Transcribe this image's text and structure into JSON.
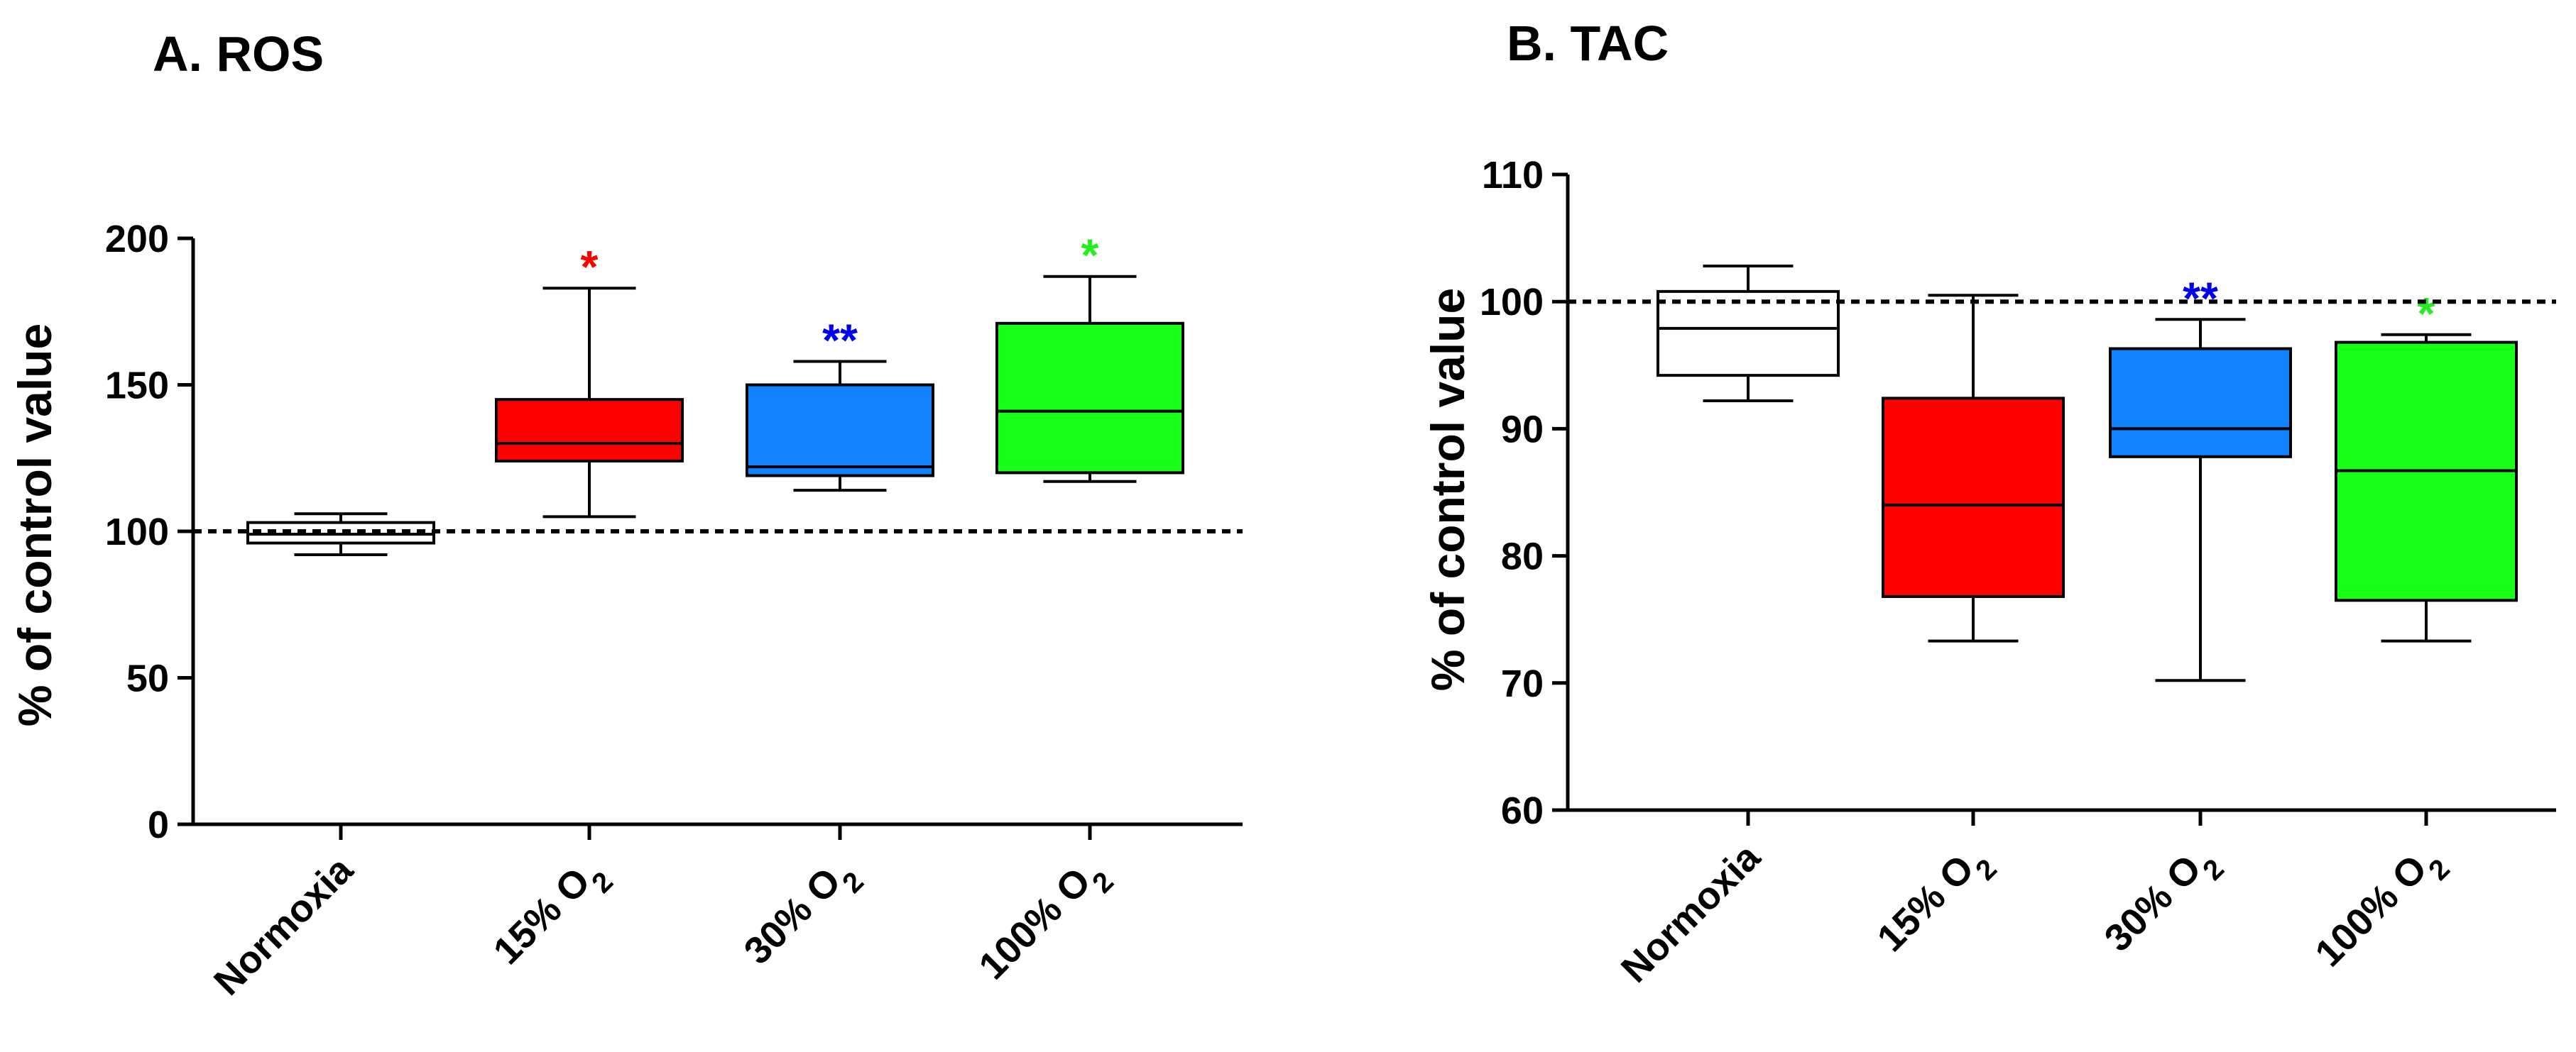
{
  "chart_data": [
    {
      "type": "box",
      "title": "A. ROS",
      "ylabel": "% of control value",
      "ylim": [
        0,
        200
      ],
      "yticks": [
        "0",
        "50",
        "100",
        "150",
        "200"
      ],
      "yticks_values": [
        0,
        50,
        100,
        150,
        200
      ],
      "reference_line": 100,
      "categories": [
        {
          "label": "Normoxia",
          "base": "Normoxia",
          "sub": ""
        },
        {
          "label": "15% O2",
          "base": "15% O",
          "sub": "2"
        },
        {
          "label": "30% O2",
          "base": "30% O",
          "sub": "2"
        },
        {
          "label": "100% O2",
          "base": "100% O",
          "sub": "2"
        }
      ],
      "boxes": [
        {
          "min": 92,
          "q1": 96,
          "median": 99,
          "q3": 103,
          "max": 106,
          "color": "#ffffff",
          "sig": ""
        },
        {
          "min": 105,
          "q1": 124,
          "median": 130,
          "q3": 145,
          "max": 183,
          "color": "#ff0000",
          "sig": "*",
          "sig_color": "#ff0000"
        },
        {
          "min": 114,
          "q1": 119,
          "median": 122,
          "q3": 150,
          "max": 158,
          "color": "#1282ff",
          "sig": "**",
          "sig_color": "#0000ee"
        },
        {
          "min": 117,
          "q1": 120,
          "median": 141,
          "q3": 171,
          "max": 187,
          "color": "#18ff18",
          "sig": "*",
          "sig_color": "#22ee22"
        }
      ]
    },
    {
      "type": "box",
      "title": "B. TAC",
      "ylabel": "% of control value",
      "ylim": [
        60,
        110
      ],
      "yticks": [
        "60",
        "70",
        "80",
        "90",
        "100",
        "110"
      ],
      "yticks_values": [
        60,
        70,
        80,
        90,
        100,
        110
      ],
      "reference_line": 100,
      "categories": [
        {
          "label": "Normoxia",
          "base": "Normoxia",
          "sub": ""
        },
        {
          "label": "15% O2",
          "base": "15% O",
          "sub": "2"
        },
        {
          "label": "30% O2",
          "base": "30% O",
          "sub": "2"
        },
        {
          "label": "100% O2",
          "base": "100% O",
          "sub": "2"
        }
      ],
      "boxes": [
        {
          "min": 92.2,
          "q1": 94.2,
          "median": 97.9,
          "q3": 100.8,
          "max": 102.8,
          "color": "#ffffff",
          "sig": ""
        },
        {
          "min": 73.3,
          "q1": 76.8,
          "median": 84.0,
          "q3": 92.4,
          "max": 100.5,
          "color": "#ff0000",
          "sig": ""
        },
        {
          "min": 70.2,
          "q1": 87.8,
          "median": 90.0,
          "q3": 96.3,
          "max": 98.6,
          "color": "#1282ff",
          "sig": "**",
          "sig_color": "#0000ee"
        },
        {
          "min": 73.3,
          "q1": 76.5,
          "median": 86.7,
          "q3": 96.8,
          "max": 97.4,
          "color": "#18ff18",
          "sig": "*",
          "sig_color": "#22ee22"
        }
      ]
    }
  ]
}
